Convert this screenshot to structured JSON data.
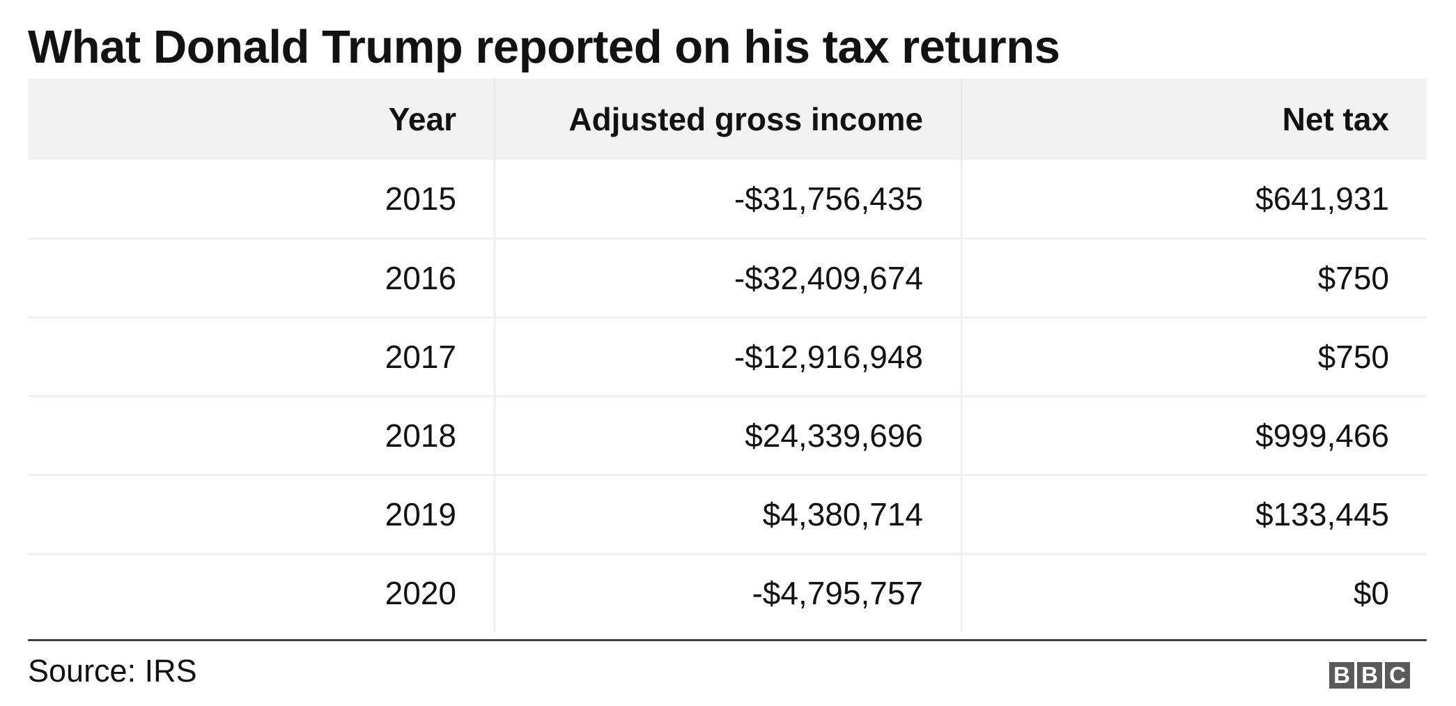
{
  "chart_data": {
    "type": "table",
    "title": "What Donald Trump reported on his tax returns",
    "columns": [
      "Year",
      "Adjusted gross income",
      "Net tax"
    ],
    "rows": [
      {
        "year": "2015",
        "agi": "-$31,756,435",
        "tax": "$641,931"
      },
      {
        "year": "2016",
        "agi": "-$32,409,674",
        "tax": "$750"
      },
      {
        "year": "2017",
        "agi": "-$12,916,948",
        "tax": "$750"
      },
      {
        "year": "2018",
        "agi": "$24,339,696",
        "tax": "$999,466"
      },
      {
        "year": "2019",
        "agi": "$4,380,714",
        "tax": "$133,445"
      },
      {
        "year": "2020",
        "agi": "-$4,795,757",
        "tax": "$0"
      }
    ],
    "source": "Source: IRS"
  },
  "branding": {
    "logo_letters": [
      "B",
      "B",
      "C"
    ]
  }
}
